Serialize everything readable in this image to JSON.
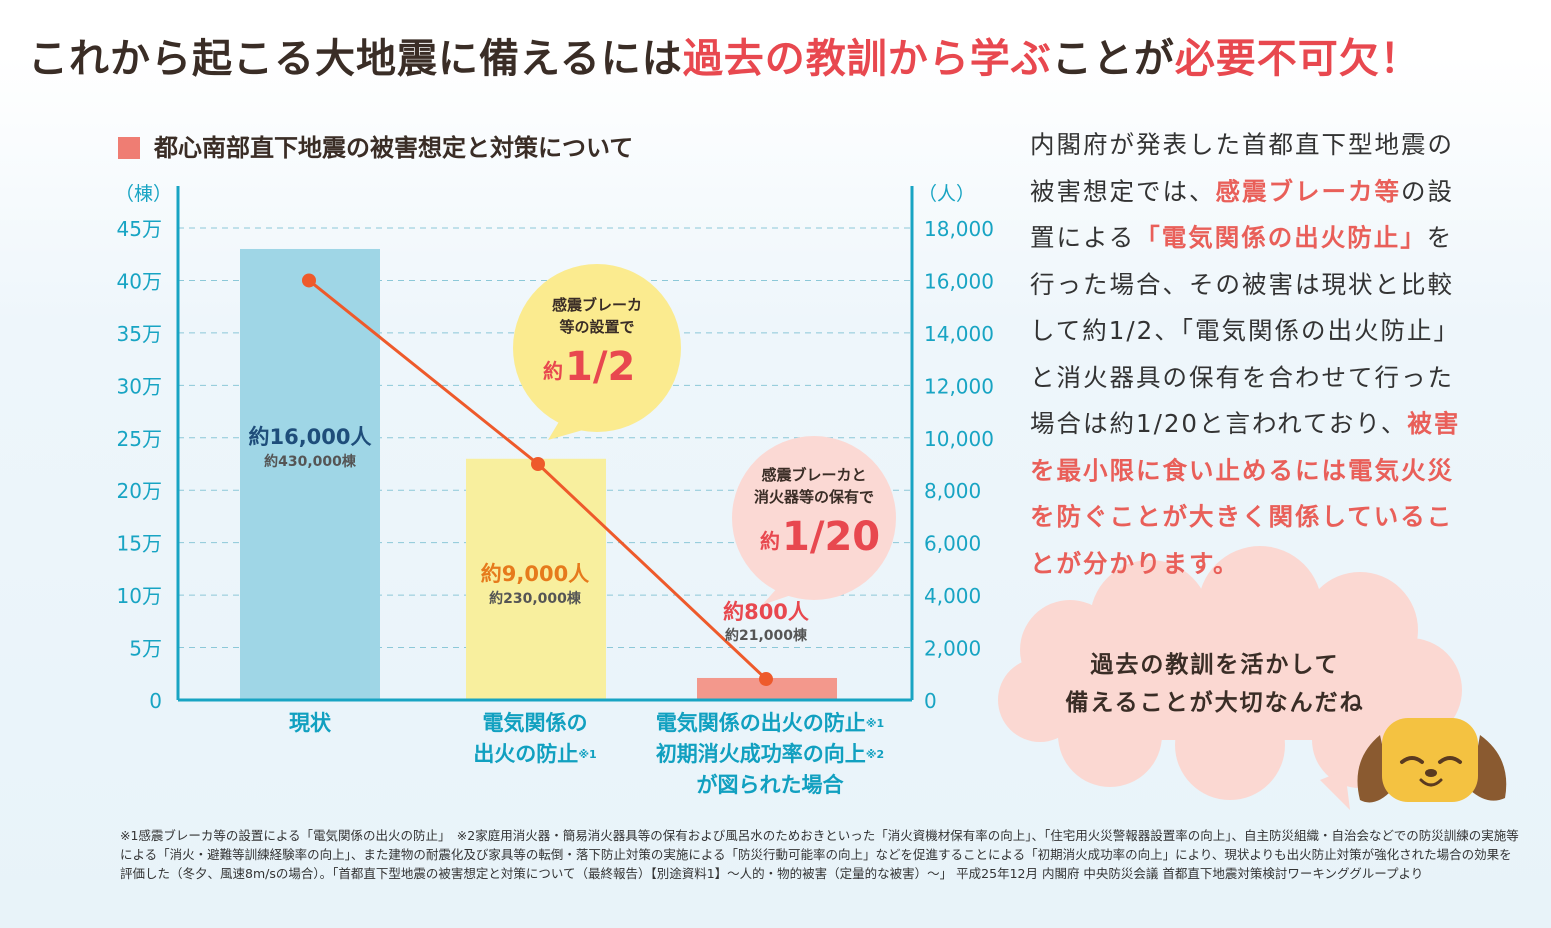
{
  "headline": {
    "part1": "これから起こる大地震に備えるには",
    "part2": "過去の教訓から学ぶ",
    "part3": "ことが",
    "part4": "必要不可欠！"
  },
  "section_title": "都心南部直下地震の被害想定と対策について",
  "chart_data": {
    "type": "bar",
    "categories": [
      "現状",
      "電気関係の出火の防止",
      "電気関係の出火の防止・初期消火成功率の向上が図られた場合"
    ],
    "series": [
      {
        "values": [
          430000,
          230000,
          21000
        ]
      },
      {
        "values": [
          16000,
          9000,
          800
        ]
      }
    ],
    "left_axis": {
      "unit": "（棟）",
      "ticks": [
        "0",
        "5万",
        "10万",
        "15万",
        "20万",
        "25万",
        "30万",
        "35万",
        "40万",
        "45万"
      ],
      "ylim": [
        0,
        450000
      ]
    },
    "right_axis": {
      "unit": "（人）",
      "ticks": [
        "0",
        "2,000",
        "4,000",
        "6,000",
        "8,000",
        "10,000",
        "12,000",
        "14,000",
        "16,000",
        "18,000"
      ],
      "ylim": [
        0,
        18000
      ]
    },
    "grid": true,
    "bar_labels": [
      {
        "people": "約16,000人",
        "buildings": "約430,000棟"
      },
      {
        "people": "約9,000人",
        "buildings": "約230,000棟"
      },
      {
        "people": "約800人",
        "buildings": "約21,000棟"
      }
    ],
    "bar_colors": [
      "#9fd6e6",
      "#f8ef9e",
      "#f3988c"
    ],
    "line_color": "#ee5a2b",
    "callouts": [
      {
        "line1": "感震ブレーカ",
        "line2": "等の設置で",
        "big": "1/2",
        "prefix": "約",
        "color": "#fbeb8f"
      },
      {
        "line1": "感震ブレーカと",
        "line2": "消火器等の保有で",
        "big": "1/20",
        "prefix": "約",
        "color": "#fbd9d4"
      }
    ]
  },
  "category_labels": {
    "c1": "現状",
    "c2_line1": "電気関係の",
    "c2_line2": "出火の防止",
    "c2_note": "※1",
    "c3_line1": "電気関係の出火の防止",
    "c3_note1": "※1",
    "c3_line2": "初期消火成功率の向上",
    "c3_note2": "※2",
    "c3_line3": "が図られた場合"
  },
  "side_text": {
    "p1": "内閣府が発表した首都直下型地震の被害想定では、",
    "p2": "感震ブレーカ等",
    "p3": "の設置による",
    "p4": "「電気関係の出火防止」",
    "p5": "を行った場合、その被害は現状と比較して約1/2、「電気関係の出火防止」と消火器具の保有を合わせて行った場合は約1/20と言われており、",
    "p6": "被害を最小限に食い止めるには電気火災を防ぐことが大きく関係していることが分かります。"
  },
  "cloud": {
    "line1": "過去の教訓を活かして",
    "line2": "備えることが大切なんだね"
  },
  "footnote": "※1感震ブレーカ等の設置による「電気関係の出火の防止」　※2家庭用消火器・簡易消火器具等の保有および風呂水のためおきといった「消火資機材保有率の向上」、「住宅用火災警報器設置率の向上」、自主防災組織・自治会などでの防災訓練の実施等による「消火・避難等訓練経験率の向上」、また建物の耐震化及び家具等の転倒・落下防止対策の実施による「防災行動可能率の向上」などを促進することによる「初期消火成功率の向上」により、現状よりも出火防止対策が強化された場合の効果を評価した（冬夕、風速8m/sの場合）。「首都直下型地震の被害想定と対策について（最終報告）【別途資料1】〜人的・物的被害（定量的な被害）〜」 平成25年12月 内閣府 中央防災会議 首都直下地震対策検討ワーキンググループより"
}
